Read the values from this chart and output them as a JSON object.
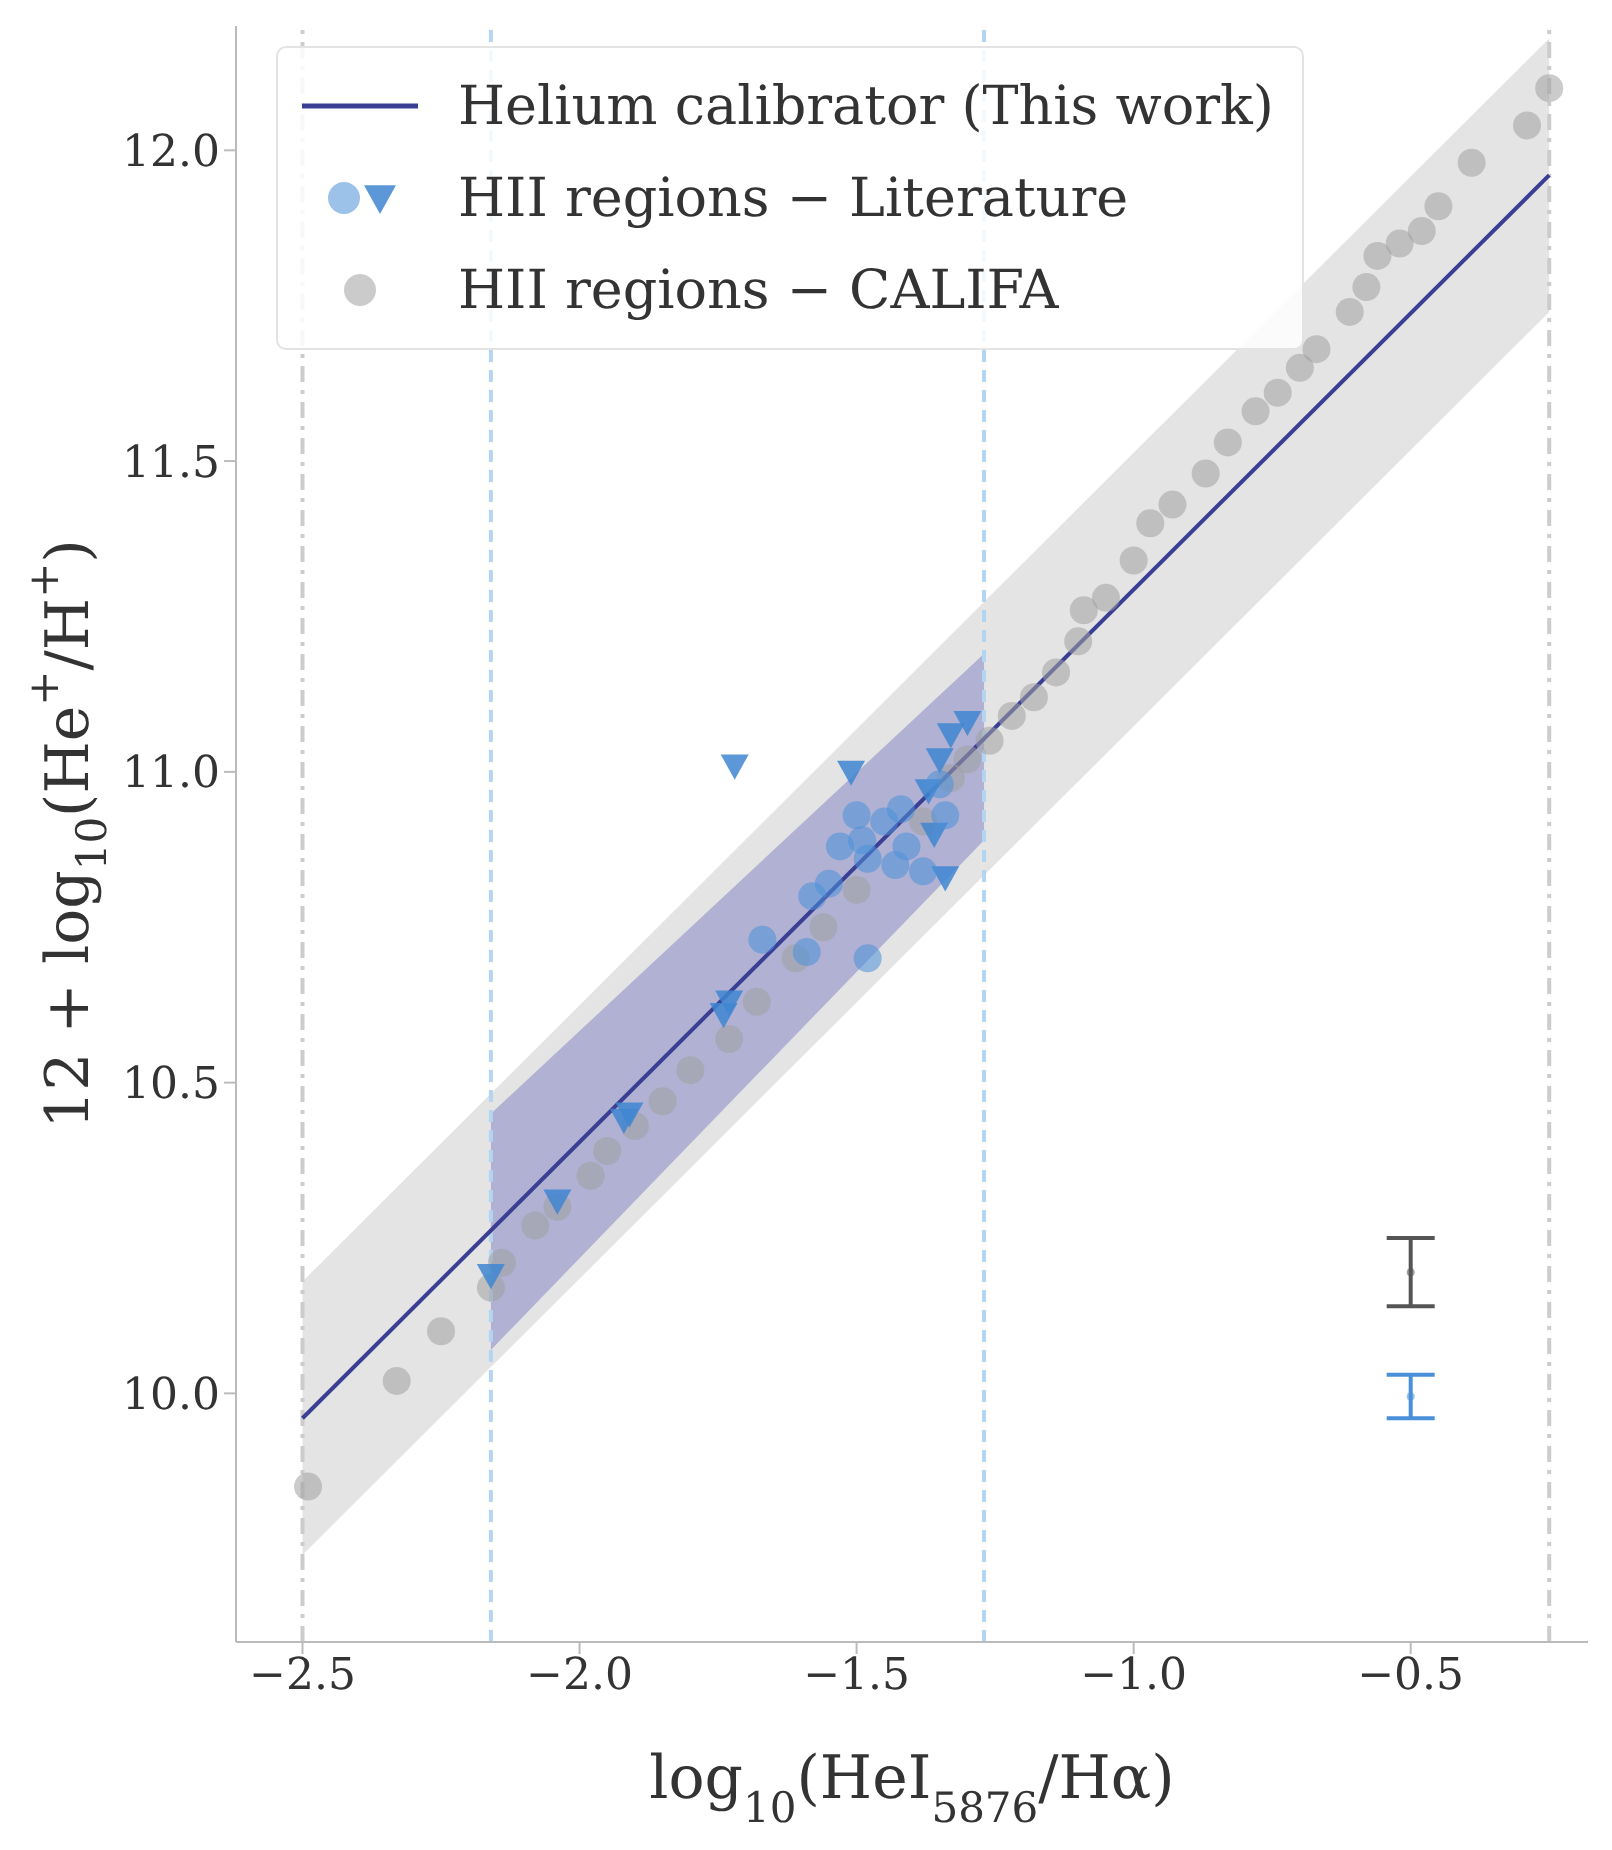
{
  "chart_data": {
    "type": "scatter",
    "xlabel": "log$_{10}$(HeI$_{5876}$/Hα)",
    "ylabel": "12 + log$_{10}$(He$^{+}$/H$^{+}$)",
    "xlim": [
      -2.62,
      -0.18
    ],
    "ylim": [
      9.6,
      12.2
    ],
    "xticks": [
      {
        "value": -2.5,
        "label": "−2.5"
      },
      {
        "value": -2.0,
        "label": "−2.0"
      },
      {
        "value": -1.5,
        "label": "−1.5"
      },
      {
        "value": -1.0,
        "label": "−1.0"
      },
      {
        "value": -0.5,
        "label": "−0.5"
      }
    ],
    "yticks": [
      {
        "value": 10.0,
        "label": "10.0"
      },
      {
        "value": 10.5,
        "label": "10.5"
      },
      {
        "value": 11.0,
        "label": "11.0"
      },
      {
        "value": 11.5,
        "label": "11.5"
      },
      {
        "value": 12.0,
        "label": "12.0"
      }
    ],
    "grid": false,
    "legend": "top left",
    "ref_lines": [
      {
        "axis": "x",
        "value": -2.5,
        "color": "#cccccc",
        "line_style": "dashdot"
      },
      {
        "axis": "x",
        "value": -0.25,
        "color": "#cccccc",
        "line_style": "dashdot"
      },
      {
        "axis": "x",
        "value": -2.16,
        "color": "#b3d5f2",
        "line_style": "dashed"
      },
      {
        "axis": "x",
        "value": -1.27,
        "color": "#b3d5f2",
        "line_style": "dashed"
      }
    ],
    "series": [
      {
        "name": "Helium calibrator (This work)",
        "type": "line",
        "color": "#3b3f94",
        "marker": "none",
        "x": [
          -2.5,
          -0.25
        ],
        "values": [
          9.96,
          11.96
        ]
      },
      {
        "type": "line",
        "color": "#e4e4e4",
        "x": [
          -2.5,
          -0.25
        ],
        "values": [
          null,
          null
        ],
        "lower": [
          9.74,
          11.74
        ],
        "upper": [
          10.18,
          12.18
        ]
      },
      {
        "type": "line",
        "color": "#b0b1d3",
        "x": [
          -2.16,
          -1.27
        ],
        "values": [
          null,
          null
        ],
        "lower": [
          10.07,
          10.89
        ],
        "upper": [
          10.45,
          11.19
        ]
      },
      {
        "name": "HII regions − Literature",
        "color": "#4a90d9",
        "marker": "circle",
        "x": [
          -1.67,
          -1.59,
          -1.48,
          -1.5,
          -1.53,
          -1.45,
          -1.43,
          -1.48,
          -1.41,
          -1.49,
          -1.58,
          -1.55,
          -1.38,
          -1.35,
          -1.34,
          -1.42
        ],
        "values": [
          10.73,
          10.71,
          10.7,
          10.93,
          10.88,
          10.92,
          10.85,
          10.86,
          10.88,
          10.89,
          10.8,
          10.82,
          10.84,
          10.98,
          10.93,
          10.94
        ]
      },
      {
        "color": "#3f86d0",
        "marker": "triangle_down",
        "x": [
          -1.72,
          -1.51,
          -1.34,
          -1.35,
          -1.37,
          -1.36,
          -1.74,
          -1.73,
          -1.91,
          -1.92,
          -2.04,
          -2.16,
          -1.3,
          -1.33
        ],
        "values": [
          11.01,
          11.0,
          10.83,
          11.02,
          10.97,
          10.9,
          10.61,
          10.63,
          10.45,
          10.44,
          10.31,
          10.19,
          11.08,
          11.06
        ]
      },
      {
        "name": "HII regions − CALIFA",
        "color": "#a0a0a0",
        "marker": "circle",
        "x": [
          -2.49,
          -2.33,
          -2.25,
          -2.16,
          -2.14,
          -2.08,
          -2.04,
          -1.98,
          -1.95,
          -1.9,
          -1.85,
          -1.8,
          -1.73,
          -1.68,
          -1.61,
          -1.56,
          -1.5,
          -1.38,
          -1.33,
          -1.3,
          -1.26,
          -1.22,
          -1.18,
          -1.14,
          -1.1,
          -1.09,
          -1.05,
          -1.0,
          -0.97,
          -0.93,
          -0.87,
          -0.83,
          -0.78,
          -0.74,
          -0.7,
          -0.67,
          -0.61,
          -0.58,
          -0.56,
          -0.52,
          -0.48,
          -0.45,
          -0.39,
          -0.29,
          -0.25
        ],
        "values": [
          9.85,
          10.02,
          10.1,
          10.17,
          10.21,
          10.27,
          10.3,
          10.35,
          10.39,
          10.43,
          10.47,
          10.52,
          10.57,
          10.63,
          10.7,
          10.75,
          10.81,
          10.92,
          10.99,
          11.02,
          11.05,
          11.09,
          11.12,
          11.16,
          11.21,
          11.26,
          11.28,
          11.34,
          11.4,
          11.43,
          11.48,
          11.53,
          11.58,
          11.61,
          11.65,
          11.68,
          11.74,
          11.78,
          11.83,
          11.85,
          11.87,
          11.91,
          11.98,
          12.04,
          12.1
        ]
      },
      {
        "color": "#555555",
        "x": [
          -0.5
        ],
        "values": [
          10.195
        ],
        "errors": [
          0.055
        ]
      },
      {
        "color": "#4a90d9",
        "x": [
          -0.5
        ],
        "values": [
          9.995
        ],
        "errors": [
          0.035
        ]
      }
    ]
  }
}
